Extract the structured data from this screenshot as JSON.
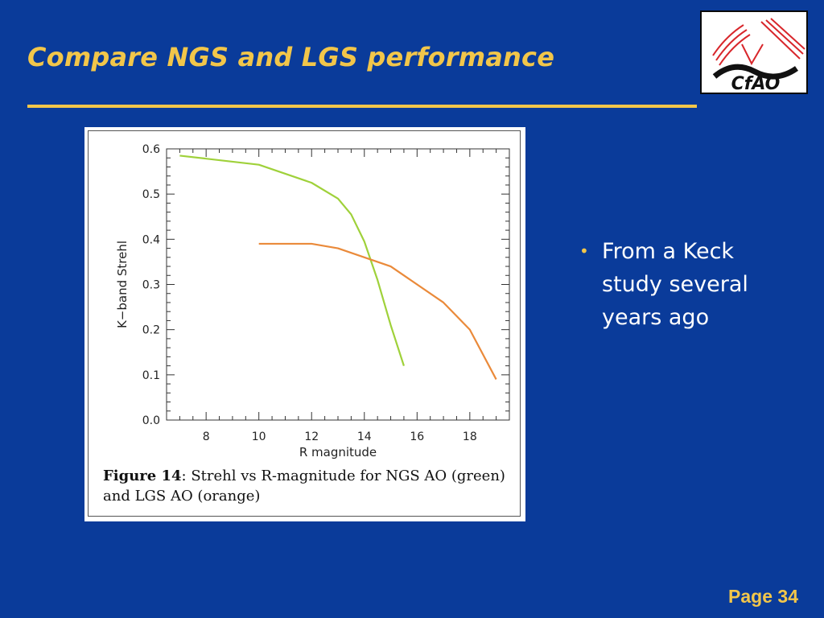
{
  "slide": {
    "title": "Compare NGS and LGS performance",
    "bullets": [
      "From a Keck study several years ago"
    ],
    "page_label": "Page 34",
    "logo_text": "CfAO"
  },
  "figure": {
    "caption_label": "Figure 14",
    "caption_text": ": Strehl vs R-magnitude for NGS AO (green) and LGS AO (orange)"
  },
  "chart_data": {
    "type": "line",
    "title": "",
    "xlabel": "R magnitude",
    "ylabel": "K−band Strehl",
    "xlim": [
      6.5,
      19.5
    ],
    "ylim": [
      0.0,
      0.6
    ],
    "x_ticks": [
      8,
      10,
      12,
      14,
      16,
      18
    ],
    "y_ticks": [
      0.0,
      0.1,
      0.2,
      0.3,
      0.4,
      0.5,
      0.6
    ],
    "x_tick_labels": [
      "8",
      "10",
      "12",
      "14",
      "16",
      "18"
    ],
    "y_tick_labels": [
      "0.0",
      "0.1",
      "0.2",
      "0.3",
      "0.4",
      "0.5",
      "0.6"
    ],
    "grid": false,
    "series": [
      {
        "color": "#9fd13a",
        "x": [
          7,
          10,
          12,
          13,
          13.5,
          14,
          14.5,
          15,
          15.5
        ],
        "y": [
          0.585,
          0.565,
          0.525,
          0.49,
          0.455,
          0.395,
          0.31,
          0.21,
          0.12
        ]
      },
      {
        "color": "#ea8a3a",
        "x": [
          10,
          12,
          13,
          15,
          17,
          18,
          19
        ],
        "y": [
          0.39,
          0.39,
          0.38,
          0.34,
          0.26,
          0.2,
          0.09
        ]
      }
    ]
  }
}
